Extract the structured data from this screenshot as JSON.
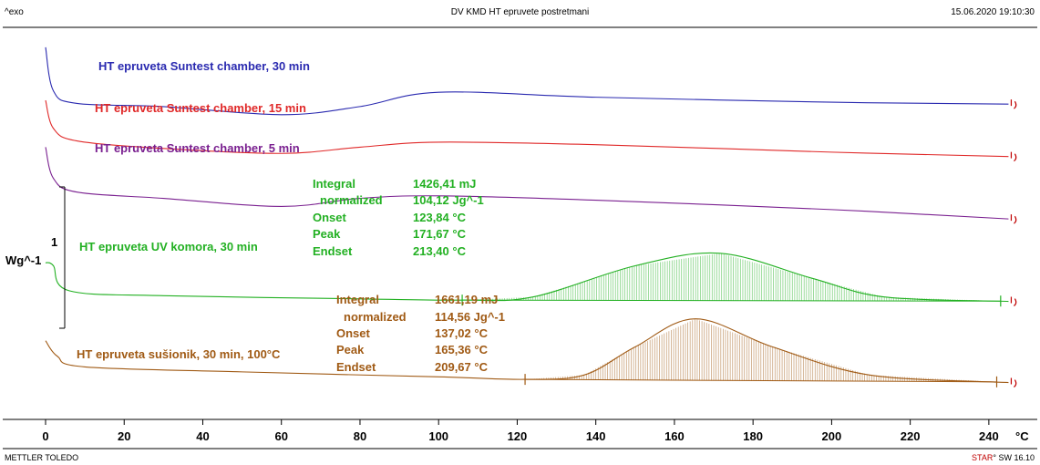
{
  "header": {
    "left": "^exo",
    "title": "DV KMD HT epruvete postretmani",
    "datetime": "15.06.2020 19:10:30"
  },
  "footer": {
    "left": "METTLER TOLEDO",
    "right_brand": "STAR",
    "right_rest": "° SW 16.10"
  },
  "colors": {
    "blue": "#2a2ab0",
    "red": "#e02828",
    "purple": "#7a2090",
    "green": "#22b022",
    "brown": "#a05a14",
    "axis": "#000000",
    "endmarker": "#c00000"
  },
  "chart_data": {
    "type": "line",
    "title": "DV KMD HT epruvete postretmani",
    "xlabel": "°C",
    "ylabel": "Wg^-1",
    "y_scale_label": "1",
    "xlim": [
      0,
      250
    ],
    "xticks": [
      0,
      20,
      40,
      60,
      80,
      100,
      120,
      140,
      160,
      180,
      200,
      220,
      240
    ],
    "grid": false,
    "legend": "none (curve labels inline)",
    "series": [
      {
        "name": "HT epruveta Suntest chamber, 30 min",
        "color": "blue",
        "x": [
          0,
          2,
          8,
          30,
          60,
          80,
          100,
          140,
          200,
          245
        ],
        "y": [
          0.9,
          0.2,
          0.0,
          -0.05,
          -0.18,
          -0.05,
          0.18,
          0.1,
          0.02,
          -0.01
        ]
      },
      {
        "name": "HT epruveta Suntest chamber, 15 min",
        "color": "red",
        "x": [
          0,
          2,
          8,
          30,
          60,
          80,
          100,
          140,
          200,
          245
        ],
        "y": [
          0.05,
          -0.4,
          -0.6,
          -0.72,
          -0.8,
          -0.7,
          -0.62,
          -0.66,
          -0.78,
          -0.85
        ]
      },
      {
        "name": "HT epruveta Suntest chamber, 5 min",
        "color": "purple",
        "x": [
          0,
          2,
          8,
          30,
          60,
          80,
          100,
          140,
          200,
          245
        ],
        "y": [
          -0.7,
          -1.2,
          -1.42,
          -1.52,
          -1.65,
          -1.52,
          -1.48,
          -1.55,
          -1.7,
          -1.85
        ]
      },
      {
        "name": "HT epruveta UV komora, 30 min",
        "color": "green",
        "x": [
          0,
          2,
          6,
          30,
          80,
          106,
          124,
          150,
          171.67,
          195,
          213.4,
          245
        ],
        "y": [
          -2.55,
          -2.6,
          -3.0,
          -3.08,
          -3.13,
          -3.15,
          -3.1,
          -2.6,
          -2.4,
          -2.8,
          -3.1,
          -3.17
        ]
      },
      {
        "name": "HT epruveta sušionik, 30 min, 100°C",
        "color": "brown",
        "x": [
          0,
          3,
          10,
          50,
          100,
          122,
          137,
          150,
          165.36,
          185,
          209.67,
          245
        ],
        "y": [
          -3.8,
          -4.05,
          -4.22,
          -4.3,
          -4.38,
          -4.42,
          -4.35,
          -3.9,
          -3.45,
          -3.9,
          -4.35,
          -4.47
        ]
      }
    ],
    "peaks": [
      {
        "series": "HT epruveta UV komora, 30 min",
        "color": "green",
        "range": [
          106,
          243
        ],
        "integral_label": "Integral",
        "integral": "1426,41 mJ",
        "normalized_label": "normalized",
        "normalized": "104,12 Jg^-1",
        "onset_label": "Onset",
        "onset": "123,84 °C",
        "peak_label": "Peak",
        "peak": "171,67 °C",
        "endset_label": "Endset",
        "endset": "213,40 °C"
      },
      {
        "series": "HT epruveta sušionik, 30 min, 100°C",
        "color": "brown",
        "range": [
          122,
          242
        ],
        "integral_label": "Integral",
        "integral": "1661,19 mJ",
        "normalized_label": "normalized",
        "normalized": "114,56 Jg^-1",
        "onset_label": "Onset",
        "onset": "137,02 °C",
        "peak_label": "Peak",
        "peak": "165,36 °C",
        "endset_label": "Endset",
        "endset": "209,67 °C"
      }
    ]
  }
}
